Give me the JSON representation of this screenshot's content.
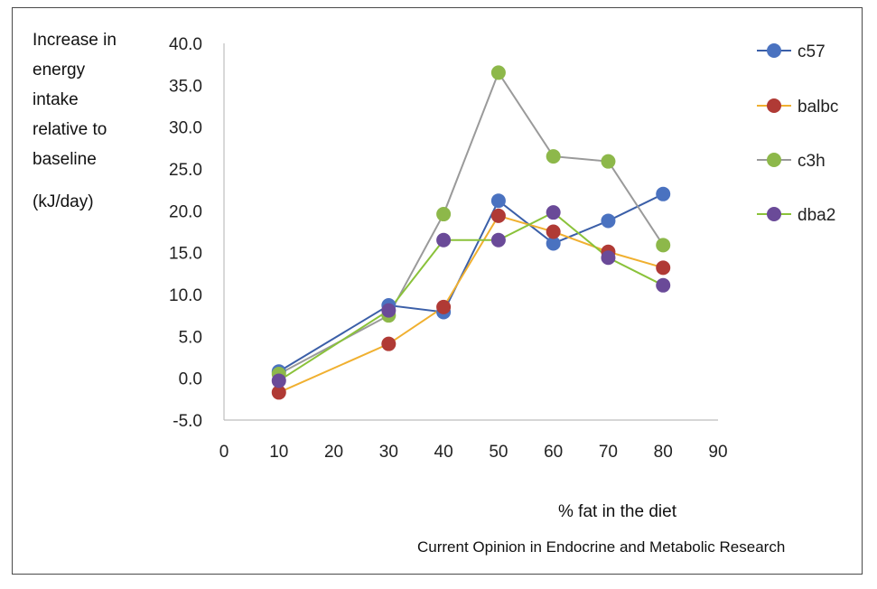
{
  "chart_data": {
    "type": "line",
    "ylabel_lines": [
      "Increase in",
      "energy",
      "intake",
      "relative to",
      "baseline"
    ],
    "yunit": "(kJ/day)",
    "xlabel": "% fat in the diet",
    "source": "Current Opinion in Endocrine and Metabolic Research",
    "xlim": [
      0,
      90
    ],
    "ylim": [
      -5,
      40
    ],
    "x_ticks": [
      0,
      10,
      20,
      30,
      40,
      50,
      60,
      70,
      80,
      90
    ],
    "y_ticks": [
      -5,
      0,
      5,
      10,
      15,
      20,
      25,
      30,
      35,
      40
    ],
    "y_tick_labels": [
      "-5.0",
      "0.0",
      "5.0",
      "10.0",
      "15.0",
      "20.0",
      "25.0",
      "30.0",
      "35.0",
      "40.0"
    ],
    "grid": false,
    "legend_position": "right",
    "x": [
      10,
      30,
      40,
      50,
      60,
      70,
      80
    ],
    "series": [
      {
        "name": "c57",
        "values": [
          0.8,
          8.7,
          7.9,
          21.2,
          16.1,
          18.8,
          22.0
        ],
        "line_color": "#3b5fa8",
        "marker_color": "#4a72c0"
      },
      {
        "name": "balbc",
        "values": [
          -1.7,
          4.1,
          8.5,
          19.4,
          17.5,
          15.1,
          13.2
        ],
        "line_color": "#f0b030",
        "marker_color": "#b03a35"
      },
      {
        "name": "c3h",
        "values": [
          0.5,
          7.5,
          19.6,
          36.5,
          26.5,
          25.9,
          15.9
        ],
        "line_color": "#9a9a9a",
        "marker_color": "#8db84a"
      },
      {
        "name": "dba2",
        "values": [
          -0.3,
          8.1,
          16.5,
          16.5,
          19.8,
          14.4,
          11.1
        ],
        "line_color": "#8ac23a",
        "marker_color": "#6a4a98"
      }
    ]
  }
}
